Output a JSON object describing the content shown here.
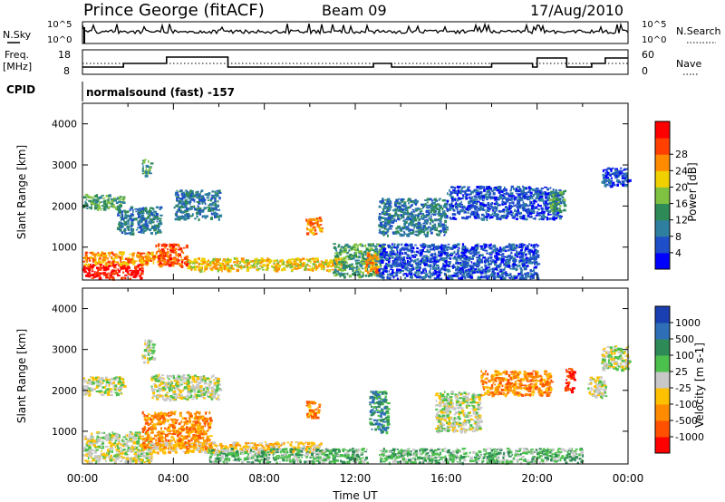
{
  "header": {
    "station": "Prince George (fitACF)",
    "beam": "Beam 09",
    "date": "17/Aug/2010"
  },
  "noise_panel": {
    "left_label": "N.Sky",
    "left_ticks": [
      "10^5",
      "10^0"
    ],
    "right_label": "N.Search",
    "right_ticks": [
      "10^5",
      "10^0"
    ]
  },
  "freq_panel": {
    "left_label_line1": "Freq.",
    "left_label_line2": "[MHz]",
    "left_ticks": [
      "18",
      "8"
    ],
    "right_label": "Nave",
    "right_ticks": [
      "60",
      "0"
    ]
  },
  "cpid": {
    "label": "CPID",
    "value": "normalsound (fast) -157"
  },
  "time_axis": {
    "ticks": [
      "00:00",
      "04:00",
      "08:00",
      "12:00",
      "16:00",
      "20:00",
      "00:00"
    ],
    "label": "Time UT"
  },
  "chart_data": [
    {
      "type": "heatmap",
      "name": "power",
      "ylabel": "Slant Range [km]",
      "yticks": [
        "1000",
        "2000",
        "3000",
        "4000"
      ],
      "ylim": [
        200,
        4500
      ],
      "xlim_hours": [
        0,
        24
      ],
      "colorbar": {
        "label": "Power [dB]",
        "ticks": [
          "4",
          "8",
          "12",
          "16",
          "20",
          "24",
          "28"
        ],
        "colors": [
          "#0000ff",
          "#1f4fc8",
          "#2f7fa0",
          "#2e8b57",
          "#7fc241",
          "#f0d000",
          "#ff8c00",
          "#ff4000",
          "#ff0000"
        ]
      },
      "regions": [
        {
          "t0": 0.0,
          "t1": 2.6,
          "r0": 250,
          "r1": 600,
          "level": 8
        },
        {
          "t0": 0.0,
          "t1": 3.6,
          "r0": 600,
          "r1": 900,
          "level": 6
        },
        {
          "t0": 0.0,
          "t1": 1.8,
          "r0": 1950,
          "r1": 2300,
          "level": 3
        },
        {
          "t0": 1.5,
          "t1": 3.4,
          "r0": 1350,
          "r1": 2000,
          "level": 2
        },
        {
          "t0": 2.6,
          "t1": 3.0,
          "r0": 2750,
          "r1": 3150,
          "level": 3
        },
        {
          "t0": 3.2,
          "t1": 4.6,
          "r0": 550,
          "r1": 1100,
          "level": 7
        },
        {
          "t0": 4.0,
          "t1": 6.0,
          "r0": 1700,
          "r1": 2400,
          "level": 2
        },
        {
          "t0": 4.6,
          "t1": 11.5,
          "r0": 450,
          "r1": 750,
          "level": 5
        },
        {
          "t0": 9.8,
          "t1": 10.5,
          "r0": 1350,
          "r1": 1750,
          "level": 6
        },
        {
          "t0": 11.0,
          "t1": 13.2,
          "r0": 300,
          "r1": 1100,
          "level": 3
        },
        {
          "t0": 12.4,
          "t1": 13.0,
          "r0": 400,
          "r1": 900,
          "level": 6
        },
        {
          "t0": 13.0,
          "t1": 16.0,
          "r0": 1300,
          "r1": 2200,
          "level": 2
        },
        {
          "t0": 13.0,
          "t1": 20.0,
          "r0": 250,
          "r1": 1100,
          "level": 1
        },
        {
          "t0": 16.0,
          "t1": 21.0,
          "r0": 1700,
          "r1": 2500,
          "level": 1
        },
        {
          "t0": 20.5,
          "t1": 21.2,
          "r0": 1900,
          "r1": 2400,
          "level": 3
        },
        {
          "t0": 22.8,
          "t1": 24.0,
          "r0": 2500,
          "r1": 2950,
          "level": 1
        }
      ]
    },
    {
      "type": "heatmap",
      "name": "velocity",
      "ylabel": "Slant Range [km]",
      "yticks": [
        "1000",
        "2000",
        "3000",
        "4000"
      ],
      "ylim": [
        200,
        4500
      ],
      "xlim_hours": [
        0,
        24
      ],
      "colorbar": {
        "label": "Velocity [m s-1]",
        "ticks": [
          "1000",
          "500",
          "100",
          "25",
          "-25",
          "-100",
          "-500",
          "-1000"
        ],
        "colors": [
          "#1a3fb0",
          "#2e6fb8",
          "#2e8b57",
          "#4cc04c",
          "#c8c8c8",
          "#ffc000",
          "#ff8c00",
          "#ff5000",
          "#ff0000"
        ]
      },
      "regions": [
        {
          "t0": 0.0,
          "t1": 1.8,
          "r0": 1900,
          "r1": 2350,
          "level": 4
        },
        {
          "t0": 0.0,
          "t1": 3.0,
          "r0": 250,
          "r1": 1000,
          "level": 4
        },
        {
          "t0": 2.6,
          "t1": 3.1,
          "r0": 2700,
          "r1": 3250,
          "level": 4
        },
        {
          "t0": 2.6,
          "t1": 5.6,
          "r0": 600,
          "r1": 1500,
          "level": 6
        },
        {
          "t0": 3.0,
          "t1": 6.0,
          "r0": 1800,
          "r1": 2400,
          "level": 4
        },
        {
          "t0": 3.0,
          "t1": 10.5,
          "r0": 500,
          "r1": 750,
          "level": 5
        },
        {
          "t0": 5.5,
          "t1": 12.5,
          "r0": 250,
          "r1": 600,
          "level": 3
        },
        {
          "t0": 9.8,
          "t1": 10.4,
          "r0": 1350,
          "r1": 1750,
          "level": 6
        },
        {
          "t0": 12.6,
          "t1": 13.4,
          "r0": 1000,
          "r1": 2000,
          "level": 2
        },
        {
          "t0": 13.0,
          "t1": 22.0,
          "r0": 250,
          "r1": 600,
          "level": 3
        },
        {
          "t0": 15.5,
          "t1": 17.5,
          "r0": 1000,
          "r1": 2000,
          "level": 4
        },
        {
          "t0": 17.5,
          "t1": 20.6,
          "r0": 1900,
          "r1": 2500,
          "level": 6
        },
        {
          "t0": 21.2,
          "t1": 21.6,
          "r0": 2000,
          "r1": 2550,
          "level": 8
        },
        {
          "t0": 22.8,
          "t1": 24.0,
          "r0": 2500,
          "r1": 3100,
          "level": 4
        },
        {
          "t0": 22.2,
          "t1": 23.0,
          "r0": 1850,
          "r1": 2350,
          "level": 4
        }
      ]
    }
  ]
}
